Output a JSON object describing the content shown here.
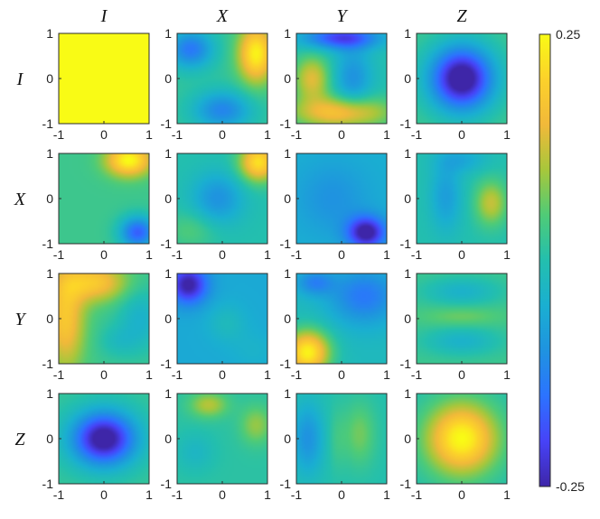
{
  "chart_data": {
    "type": "heatmap",
    "layout": "4x4 grid of panels",
    "column_labels": [
      "I",
      "X",
      "Y",
      "Z"
    ],
    "row_labels": [
      "I",
      "X",
      "Y",
      "Z"
    ],
    "axis_ticks": [
      "-1",
      "0",
      "1"
    ],
    "xlim": [
      -1,
      1
    ],
    "ylim": [
      -1,
      1
    ],
    "colorbar": {
      "min": -0.25,
      "max": 0.25,
      "min_label": "-0.25",
      "max_label": "0.25",
      "colormap": "parula",
      "stops": [
        "#3e26a8",
        "#4743f8",
        "#2c73ff",
        "#1f93e0",
        "#1aafd1",
        "#23bfae",
        "#4fcb77",
        "#a7c73b",
        "#f1b93a",
        "#fcd12b",
        "#f9fb15"
      ]
    },
    "panels": [
      {
        "row": "I",
        "col": "I",
        "blobs": [
          {
            "x": 0,
            "y": 0,
            "sx": 2.0,
            "sy": 2.0,
            "a": 0.25
          }
        ],
        "base": 0.25
      },
      {
        "row": "I",
        "col": "X",
        "blobs": [
          {
            "x": 0.75,
            "y": 0.55,
            "sx": 0.28,
            "sy": 0.45,
            "a": 0.22
          },
          {
            "x": -0.7,
            "y": 0.65,
            "sx": 0.35,
            "sy": 0.3,
            "a": -0.16
          },
          {
            "x": 0.0,
            "y": -0.7,
            "sx": 0.45,
            "sy": 0.3,
            "a": -0.14
          }
        ],
        "base": 0.02
      },
      {
        "row": "I",
        "col": "Y",
        "blobs": [
          {
            "x": 0.0,
            "y": 0.9,
            "sx": 0.6,
            "sy": 0.18,
            "a": -0.2
          },
          {
            "x": 0.25,
            "y": 0.0,
            "sx": 0.3,
            "sy": 0.5,
            "a": -0.1
          },
          {
            "x": 0.0,
            "y": -0.75,
            "sx": 0.75,
            "sy": 0.25,
            "a": 0.18
          },
          {
            "x": -0.65,
            "y": 0.0,
            "sx": 0.28,
            "sy": 0.35,
            "a": 0.14
          }
        ],
        "base": 0.0
      },
      {
        "row": "I",
        "col": "Z",
        "blobs": [
          {
            "x": 0,
            "y": 0,
            "sx": 0.5,
            "sy": 0.5,
            "a": -0.32
          }
        ],
        "base": 0.03
      },
      {
        "row": "X",
        "col": "I",
        "blobs": [
          {
            "x": 0.55,
            "y": 0.85,
            "sx": 0.35,
            "sy": 0.25,
            "a": 0.22
          },
          {
            "x": 0.75,
            "y": -0.75,
            "sx": 0.28,
            "sy": 0.25,
            "a": -0.2
          }
        ],
        "base": 0.03
      },
      {
        "row": "X",
        "col": "X",
        "blobs": [
          {
            "x": 0.8,
            "y": 0.8,
            "sx": 0.3,
            "sy": 0.3,
            "a": 0.22
          },
          {
            "x": -0.1,
            "y": 0.0,
            "sx": 0.4,
            "sy": 0.4,
            "a": -0.1
          },
          {
            "x": -0.7,
            "y": -0.7,
            "sx": 0.4,
            "sy": 0.3,
            "a": 0.05
          }
        ],
        "base": 0.0
      },
      {
        "row": "X",
        "col": "Y",
        "blobs": [
          {
            "x": 0.55,
            "y": -0.75,
            "sx": 0.3,
            "sy": 0.25,
            "a": -0.22
          },
          {
            "x": -0.2,
            "y": 0.0,
            "sx": 0.55,
            "sy": 0.55,
            "a": -0.05
          }
        ],
        "base": -0.05
      },
      {
        "row": "X",
        "col": "Z",
        "blobs": [
          {
            "x": 0.65,
            "y": -0.1,
            "sx": 0.25,
            "sy": 0.35,
            "a": 0.12
          },
          {
            "x": -0.35,
            "y": 0.05,
            "sx": 0.25,
            "sy": 0.55,
            "a": -0.08
          },
          {
            "x": 0.0,
            "y": 0.85,
            "sx": 0.4,
            "sy": 0.2,
            "a": -0.06
          }
        ],
        "base": 0.0
      },
      {
        "row": "Y",
        "col": "I",
        "blobs": [
          {
            "x": -0.2,
            "y": 0.8,
            "sx": 0.5,
            "sy": 0.3,
            "a": 0.15
          },
          {
            "x": -0.85,
            "y": 0.0,
            "sx": 0.3,
            "sy": 0.8,
            "a": 0.15
          },
          {
            "x": 0.8,
            "y": 0.0,
            "sx": 0.35,
            "sy": 0.5,
            "a": -0.07
          },
          {
            "x": 0.3,
            "y": -0.5,
            "sx": 0.3,
            "sy": 0.25,
            "a": -0.04
          }
        ],
        "base": 0.03
      },
      {
        "row": "Y",
        "col": "X",
        "blobs": [
          {
            "x": -0.75,
            "y": 0.75,
            "sx": 0.3,
            "sy": 0.3,
            "a": -0.2
          },
          {
            "x": 0.1,
            "y": -0.1,
            "sx": 0.3,
            "sy": 0.3,
            "a": 0.04
          },
          {
            "x": 0.7,
            "y": -0.7,
            "sx": 0.35,
            "sy": 0.3,
            "a": 0.02
          }
        ],
        "base": -0.06
      },
      {
        "row": "Y",
        "col": "Y",
        "blobs": [
          {
            "x": -0.75,
            "y": -0.75,
            "sx": 0.35,
            "sy": 0.35,
            "a": 0.26
          },
          {
            "x": 0.5,
            "y": 0.5,
            "sx": 0.55,
            "sy": 0.45,
            "a": -0.12
          },
          {
            "x": -0.6,
            "y": 0.8,
            "sx": 0.3,
            "sy": 0.2,
            "a": -0.1
          }
        ],
        "base": -0.02
      },
      {
        "row": "Y",
        "col": "Z",
        "blobs": [
          {
            "x": 0,
            "y": 0.6,
            "sx": 0.6,
            "sy": 0.22,
            "a": -0.07
          },
          {
            "x": 0,
            "y": -0.5,
            "sx": 0.6,
            "sy": 0.22,
            "a": -0.07
          },
          {
            "x": 0,
            "y": 0.05,
            "sx": 0.6,
            "sy": 0.15,
            "a": 0.04
          }
        ],
        "base": 0.03
      },
      {
        "row": "Z",
        "col": "I",
        "blobs": [
          {
            "x": 0,
            "y": 0,
            "sx": 0.5,
            "sy": 0.42,
            "a": -0.3
          }
        ],
        "base": 0.02
      },
      {
        "row": "Z",
        "col": "X",
        "blobs": [
          {
            "x": -0.3,
            "y": 0.75,
            "sx": 0.3,
            "sy": 0.2,
            "a": 0.1
          },
          {
            "x": 0.75,
            "y": 0.3,
            "sx": 0.25,
            "sy": 0.3,
            "a": 0.08
          },
          {
            "x": -0.6,
            "y": -0.3,
            "sx": 0.3,
            "sy": 0.3,
            "a": -0.04
          }
        ],
        "base": 0.01
      },
      {
        "row": "Z",
        "col": "Y",
        "blobs": [
          {
            "x": -0.75,
            "y": 0.0,
            "sx": 0.25,
            "sy": 0.55,
            "a": -0.1
          },
          {
            "x": 0.4,
            "y": 0.1,
            "sx": 0.25,
            "sy": 0.5,
            "a": 0.07
          },
          {
            "x": -0.1,
            "y": 0.0,
            "sx": 0.15,
            "sy": 0.5,
            "a": 0.03
          }
        ],
        "base": 0.0
      },
      {
        "row": "Z",
        "col": "Z",
        "blobs": [
          {
            "x": 0,
            "y": 0,
            "sx": 0.55,
            "sy": 0.55,
            "a": 0.25
          }
        ],
        "base": 0.0
      }
    ]
  }
}
